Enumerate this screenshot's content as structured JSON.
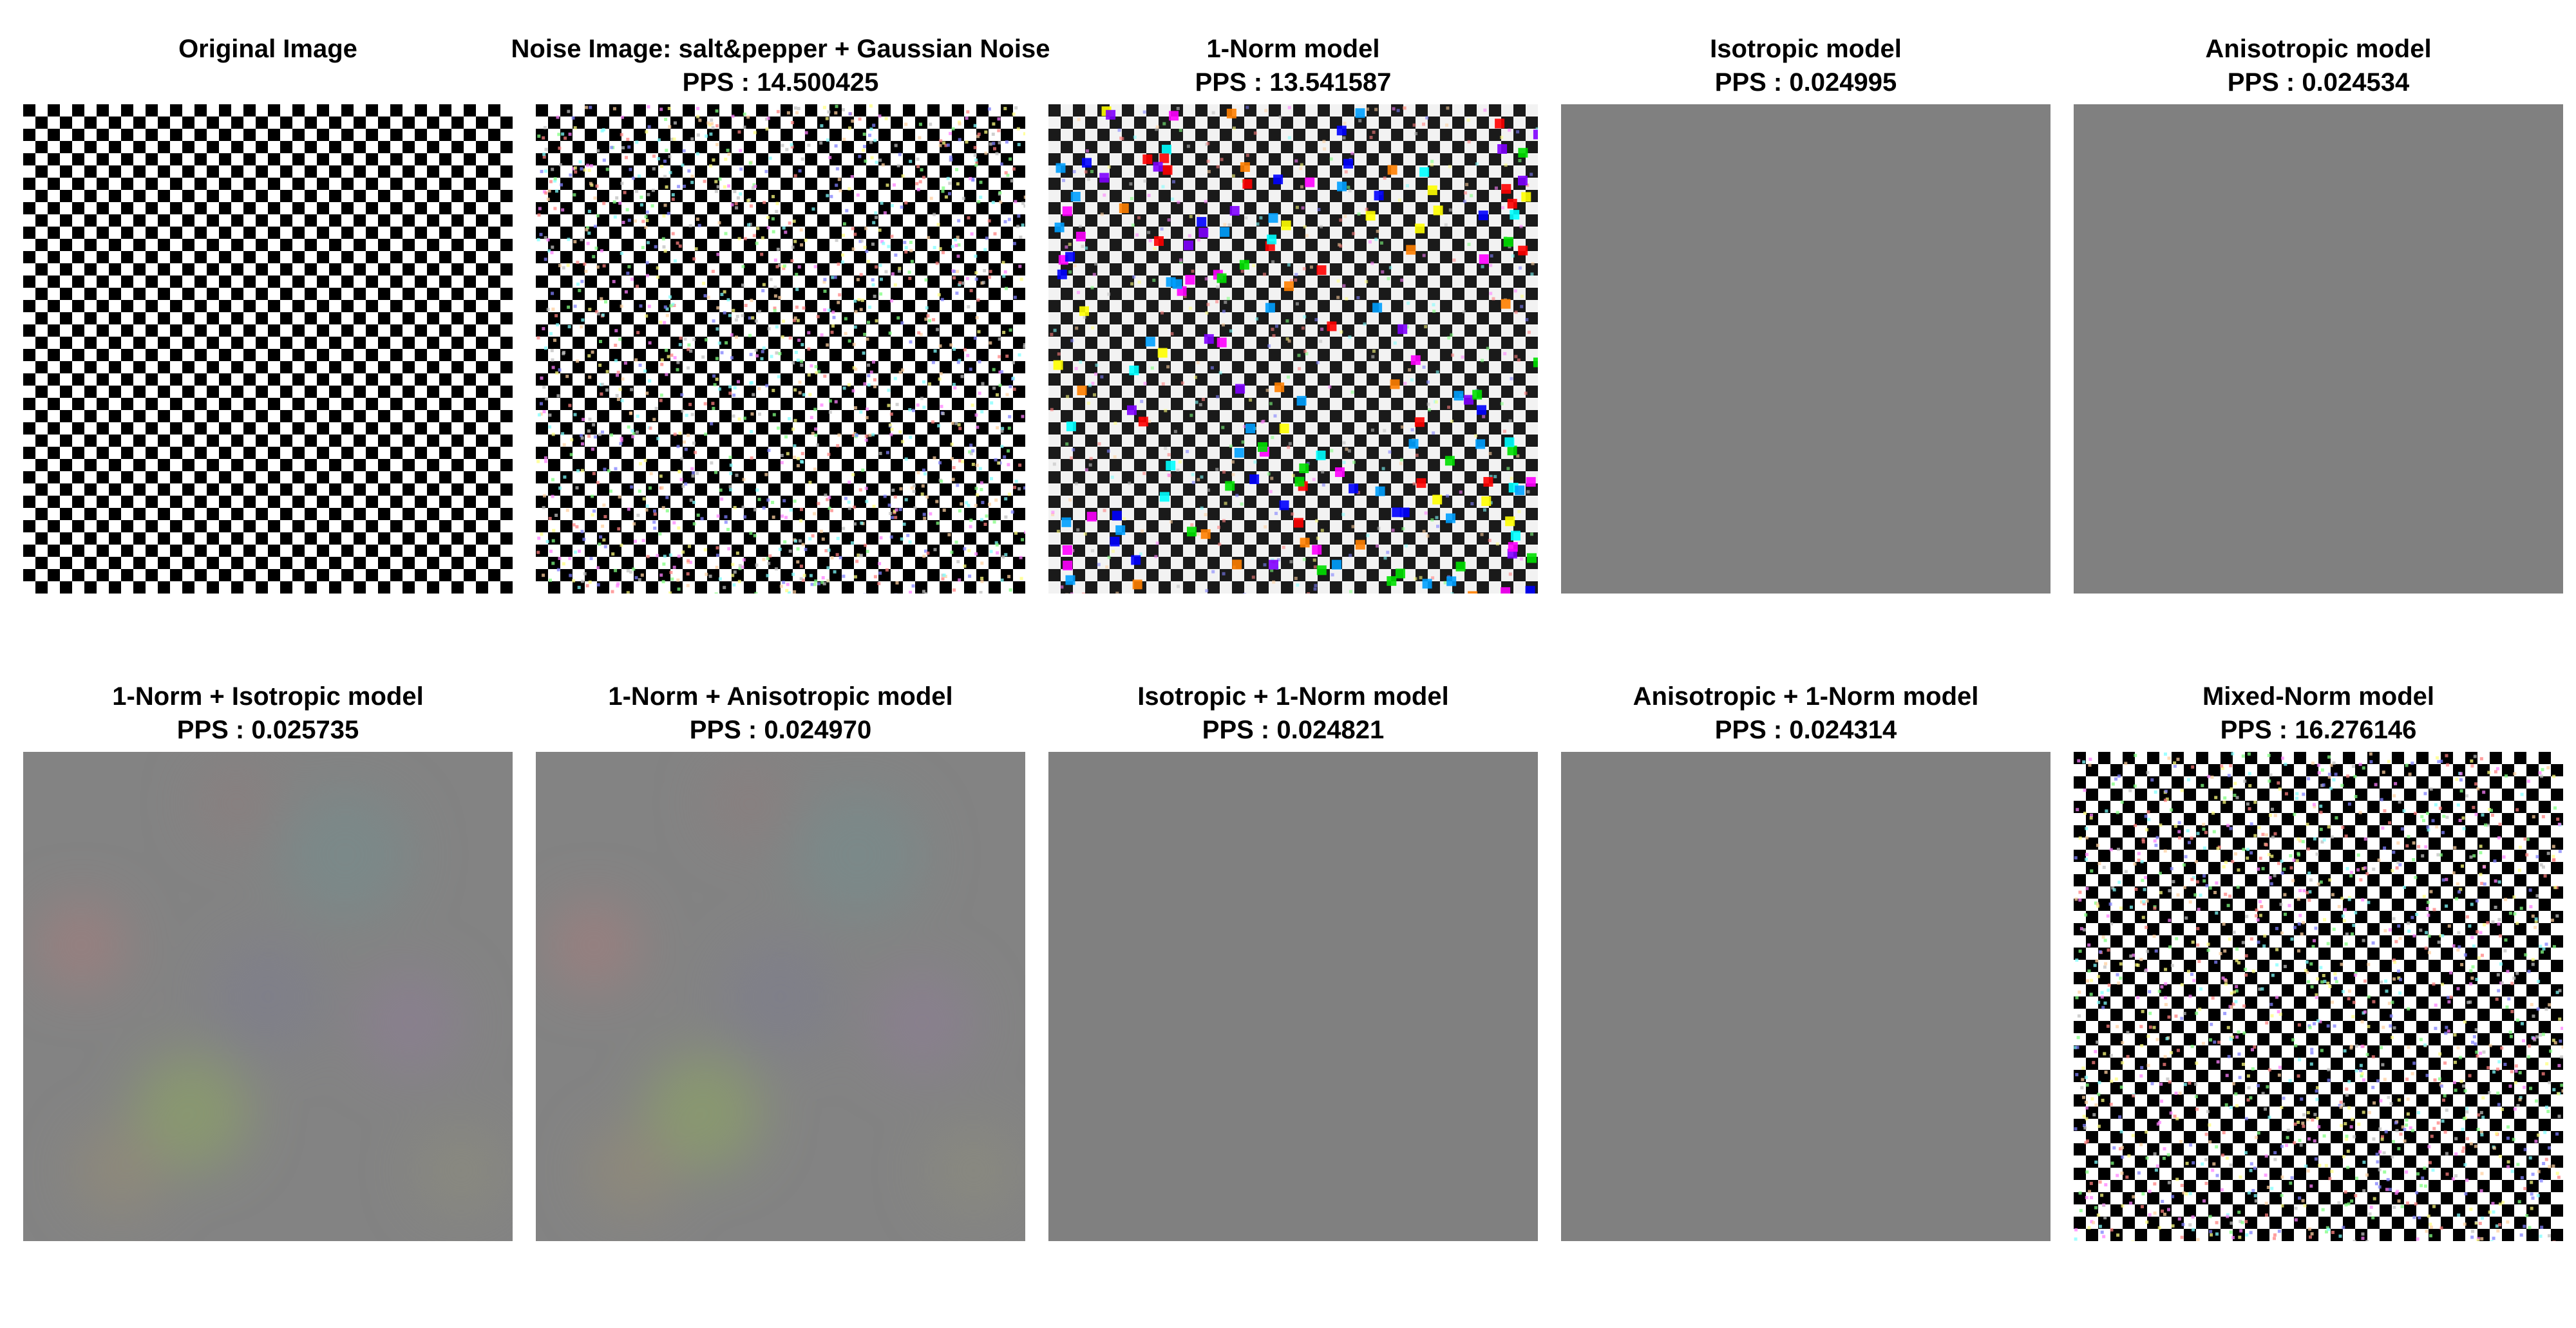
{
  "panels": [
    {
      "title": "Original Image",
      "pps": "",
      "kind": "checker"
    },
    {
      "title": "Noise Image: salt&pepper + Gaussian Noise",
      "pps": "PPS : 14.500425",
      "kind": "noisy"
    },
    {
      "title": "1-Norm model",
      "pps": "PPS : 13.541587",
      "kind": "onenorm"
    },
    {
      "title": "Isotropic model",
      "pps": "PPS : 0.024995",
      "kind": "gray"
    },
    {
      "title": "Anisotropic model",
      "pps": "PPS : 0.024534",
      "kind": "gray"
    },
    {
      "title": "1-Norm + Isotropic model",
      "pps": "PPS : 0.025735",
      "kind": "blotchy"
    },
    {
      "title": "1-Norm + Anisotropic model",
      "pps": "PPS : 0.024970",
      "kind": "blotchy"
    },
    {
      "title": "Isotropic + 1-Norm model",
      "pps": "PPS : 0.024821",
      "kind": "gray"
    },
    {
      "title": "Anisotropic + 1-Norm model",
      "pps": "PPS : 0.024314",
      "kind": "gray"
    },
    {
      "title": "Mixed-Norm model",
      "pps": "PPS : 16.276146",
      "kind": "noisy"
    }
  ],
  "colors": {
    "gray_result": "#808080",
    "checker_dark": "#000000",
    "checker_light": "#ffffff"
  }
}
